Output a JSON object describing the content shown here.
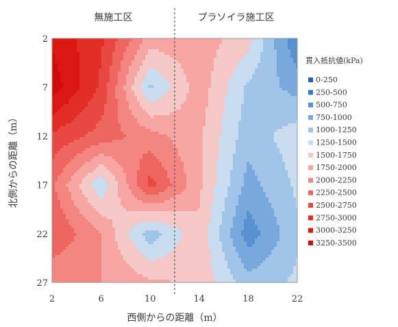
{
  "chart_data": {
    "type": "heatmap",
    "title": "",
    "section_labels": {
      "left": "無施工区",
      "right": "プラソイラ施工区"
    },
    "divider_x": 12,
    "xlabel": "西側からの距離（m）",
    "ylabel": "北側からの距離（m）",
    "x": [
      2,
      6,
      10,
      14,
      18,
      22
    ],
    "y": [
      2,
      7,
      12,
      17,
      22,
      27
    ],
    "xlim": [
      2,
      22
    ],
    "ylim": [
      2,
      27
    ],
    "x_ticks": [
      "2",
      "6",
      "10",
      "14",
      "18",
      "22"
    ],
    "y_ticks": [
      "2",
      "7",
      "12",
      "17",
      "22",
      "27"
    ],
    "values": [
      [
        3200,
        2800,
        1900,
        1900,
        1600,
        500
      ],
      [
        3400,
        2700,
        1200,
        1900,
        1200,
        900
      ],
      [
        2700,
        2400,
        2100,
        1800,
        1100,
        1400
      ],
      [
        2300,
        1300,
        2600,
        1800,
        900,
        1300
      ],
      [
        2500,
        2000,
        1100,
        1700,
        600,
        1200
      ],
      [
        2000,
        2000,
        1800,
        1700,
        1100,
        1300
      ]
    ],
    "legend": {
      "title": "貫入抵抗値(kPa)",
      "placement": "right",
      "entries": [
        {
          "label": "0-250",
          "color": "#1f63b5"
        },
        {
          "label": "250-500",
          "color": "#3a79c4"
        },
        {
          "label": "500-750",
          "color": "#5890d0"
        },
        {
          "label": "750-1000",
          "color": "#79a9dc"
        },
        {
          "label": "1000-1250",
          "color": "#9fc4e8"
        },
        {
          "label": "1250-1500",
          "color": "#c8dcf0"
        },
        {
          "label": "1500-1750",
          "color": "#f3c8c6"
        },
        {
          "label": "1750-2000",
          "color": "#f7a5a2"
        },
        {
          "label": "2000-2250",
          "color": "#f38580"
        },
        {
          "label": "2250-2500",
          "color": "#ee6660"
        },
        {
          "label": "2500-2750",
          "color": "#e84841"
        },
        {
          "label": "2750-3000",
          "color": "#e22d26"
        },
        {
          "label": "3000-3250",
          "color": "#da1712"
        },
        {
          "label": "3250-3500",
          "color": "#cf0a08"
        }
      ]
    }
  }
}
